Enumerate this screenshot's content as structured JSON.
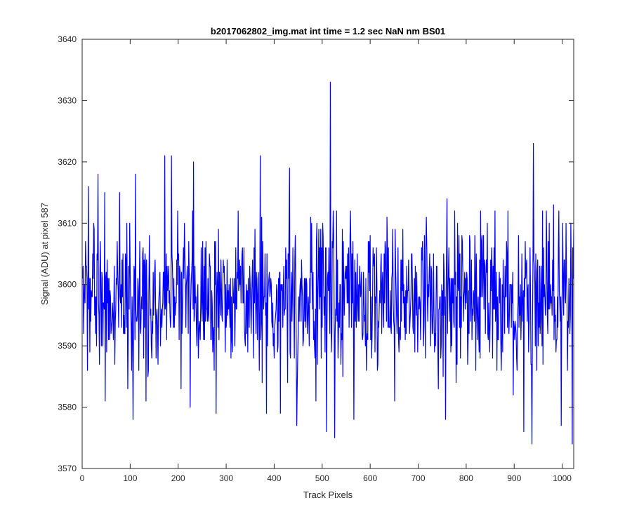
{
  "chart_data": {
    "type": "line",
    "title": "b2017062802_img.mat int time = 1.2 sec  NaN nm BS01",
    "xlabel": "Track Pixels",
    "ylabel": "Signal (ADU) at pixel 587",
    "xlim": [
      0,
      1024
    ],
    "ylim": [
      3570,
      3640
    ],
    "xticks": [
      0,
      100,
      200,
      300,
      400,
      500,
      600,
      700,
      800,
      900,
      1000
    ],
    "yticks": [
      3570,
      3580,
      3590,
      3600,
      3610,
      3620,
      3630,
      3640
    ],
    "grid": false,
    "legend": "none",
    "colors": {
      "series": "#0000ff",
      "axes": "#262626",
      "background": "#ffffff"
    },
    "series": [
      {
        "color": "#0000ff",
        "x_start": 1,
        "x_step": 1,
        "noise_mean": 3598,
        "noise_sd": 6,
        "n_points": 1024,
        "peaks": [
          {
            "x": 13,
            "y": 3616
          },
          {
            "x": 33,
            "y": 3618
          },
          {
            "x": 47,
            "y": 3615
          },
          {
            "x": 78,
            "y": 3615
          },
          {
            "x": 111,
            "y": 3618
          },
          {
            "x": 172,
            "y": 3621
          },
          {
            "x": 186,
            "y": 3621
          },
          {
            "x": 232,
            "y": 3620
          },
          {
            "x": 371,
            "y": 3621
          },
          {
            "x": 432,
            "y": 3619
          },
          {
            "x": 517,
            "y": 3633
          },
          {
            "x": 760,
            "y": 3614
          },
          {
            "x": 940,
            "y": 3623
          },
          {
            "x": 982,
            "y": 3613
          }
        ],
        "troughs": [
          {
            "x": 48,
            "y": 3581
          },
          {
            "x": 106,
            "y": 3578
          },
          {
            "x": 133,
            "y": 3581
          },
          {
            "x": 225,
            "y": 3580
          },
          {
            "x": 279,
            "y": 3579
          },
          {
            "x": 384,
            "y": 3579
          },
          {
            "x": 413,
            "y": 3579
          },
          {
            "x": 447,
            "y": 3577
          },
          {
            "x": 509,
            "y": 3576
          },
          {
            "x": 526,
            "y": 3575
          },
          {
            "x": 566,
            "y": 3578
          },
          {
            "x": 651,
            "y": 3581
          },
          {
            "x": 757,
            "y": 3578
          },
          {
            "x": 920,
            "y": 3576
          },
          {
            "x": 937,
            "y": 3574
          },
          {
            "x": 998,
            "y": 3577
          },
          {
            "x": 1021,
            "y": 3574
          }
        ]
      }
    ]
  }
}
